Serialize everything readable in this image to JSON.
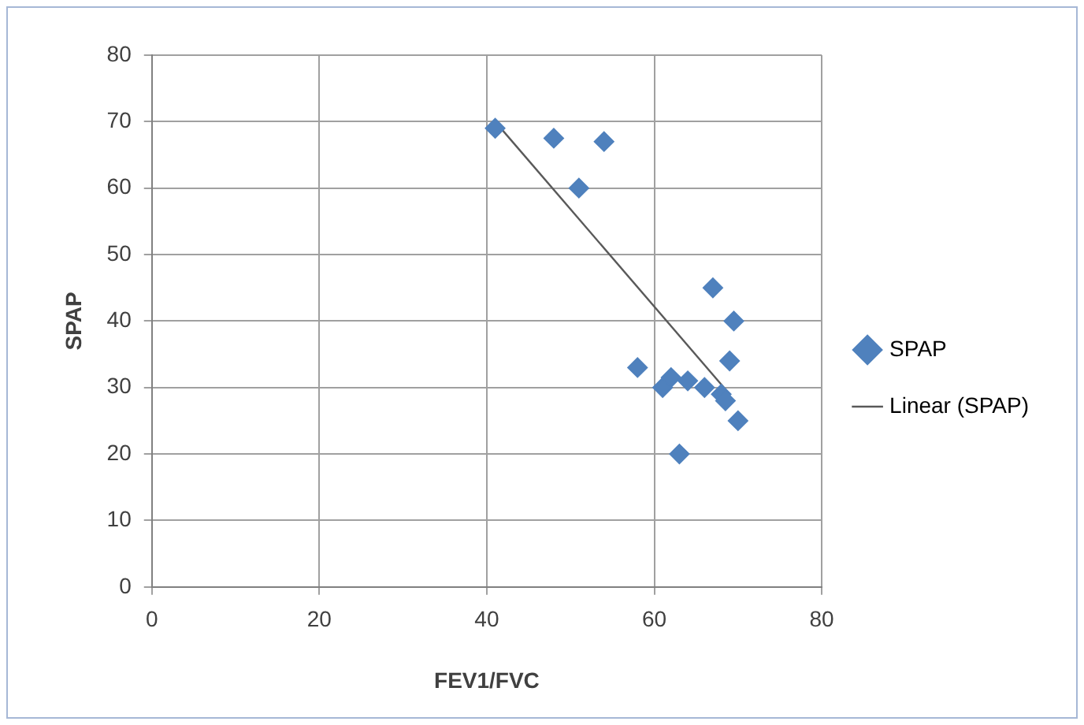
{
  "chart_data": {
    "type": "scatter",
    "xlabel": "FEV1/FVC",
    "ylabel": "SPAP",
    "series": [
      {
        "name": "SPAP",
        "color": "#4f81bd",
        "marker": "diamond",
        "x": [
          41,
          48,
          54,
          51,
          67,
          69.5,
          69,
          58,
          61,
          62,
          64,
          66,
          68,
          68.5,
          70,
          63
        ],
        "values": [
          69,
          67.5,
          67,
          60,
          45,
          40,
          34,
          33,
          30,
          31.5,
          31,
          30,
          29,
          28,
          25,
          20
        ]
      },
      {
        "name": "Linear (SPAP)",
        "type": "line",
        "color": "#595959",
        "marker": "none",
        "x": [
          41,
          69
        ],
        "values": [
          70,
          29
        ]
      }
    ],
    "xlim": [
      0,
      80
    ],
    "xticks": [
      0,
      20,
      40,
      60,
      80
    ],
    "ylim": [
      0,
      80
    ],
    "yticks": [
      0,
      10,
      20,
      30,
      40,
      50,
      60,
      70,
      80
    ],
    "grid": true,
    "legend": "right"
  }
}
